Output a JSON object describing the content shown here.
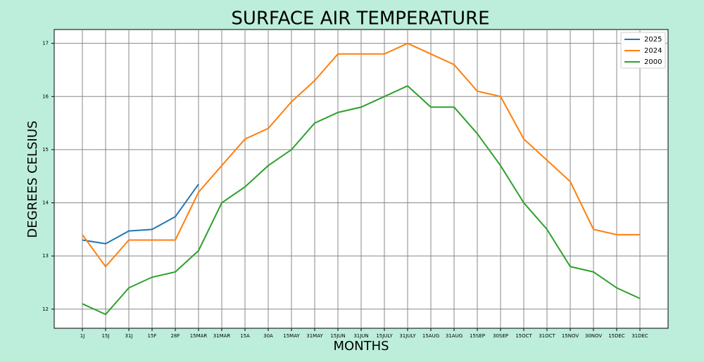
{
  "chart_data": {
    "type": "line",
    "title": "SURFACE AIR TEMPERATURE",
    "x_label": "MONTHS",
    "y_label": "DEGREES CELSIUS",
    "categories": [
      "1J",
      "15J",
      "31J",
      "15F",
      "28F",
      "15MAR",
      "31MAR",
      "15A",
      "30A",
      "15MAY",
      "31MAY",
      "15JUN",
      "31JUN",
      "15JULY",
      "31JULY",
      "15AUG",
      "31AUG",
      "15SEP",
      "30SEP",
      "15OCT",
      "31OCT",
      "15NOV",
      "30NOV",
      "15DEC",
      "31DEC"
    ],
    "series": [
      {
        "name": "2025",
        "color": "#1f77b4",
        "values": [
          13.3,
          13.23,
          13.47,
          13.5,
          13.74,
          14.35,
          null,
          null,
          null,
          null,
          null,
          null,
          null,
          null,
          null,
          null,
          null,
          null,
          null,
          null,
          null,
          null,
          null,
          null,
          null
        ]
      },
      {
        "name": "2024",
        "color": "#ff7f0e",
        "values": [
          13.4,
          12.8,
          13.3,
          13.3,
          13.3,
          14.2,
          14.7,
          15.2,
          15.4,
          15.9,
          16.3,
          16.8,
          16.8,
          16.8,
          17.0,
          16.8,
          16.6,
          16.1,
          16.0,
          15.2,
          14.8,
          14.4,
          13.5,
          13.4,
          13.4
        ]
      },
      {
        "name": "2000",
        "color": "#2ca02c",
        "values": [
          12.1,
          11.9,
          12.4,
          12.6,
          12.7,
          13.1,
          14.0,
          14.3,
          14.7,
          15.0,
          15.5,
          15.7,
          15.8,
          16.0,
          16.2,
          15.8,
          15.8,
          15.3,
          14.7,
          14.0,
          13.5,
          12.8,
          12.7,
          12.4,
          12.2
        ]
      }
    ],
    "ylim": [
      11.64,
      17.26
    ],
    "yticks": [
      12,
      13,
      14,
      15,
      16,
      17
    ],
    "grid": true,
    "legend": "upper right"
  }
}
